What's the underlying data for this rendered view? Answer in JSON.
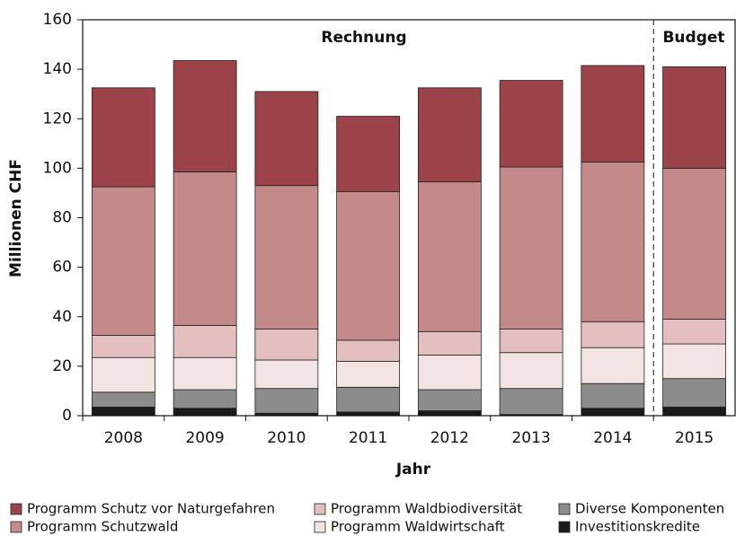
{
  "chart_data": {
    "type": "stacked_bar",
    "x_label": "Jahr",
    "y_label": "Millionen CHF",
    "annotations": [
      "Rechnung",
      "Budget"
    ],
    "categories": [
      "2008",
      "2009",
      "2010",
      "2011",
      "2012",
      "2013",
      "2014",
      "2015"
    ],
    "series": [
      {
        "name": "Investitionskredite",
        "color": "#1a1a1a",
        "values": [
          3.5,
          3,
          1,
          1.5,
          2,
          0.5,
          3,
          3.5
        ]
      },
      {
        "name": "Diverse Komponenten",
        "color": "#8c8c8c",
        "values": [
          6,
          7.5,
          10,
          10,
          8.5,
          10.5,
          10,
          11.5
        ]
      },
      {
        "name": "Programm Waldwirtschaft",
        "color": "#f4e3e3",
        "values": [
          14,
          13,
          11.5,
          10.5,
          14,
          14.5,
          14.5,
          14
        ]
      },
      {
        "name": "Programm Waldbiodiversität",
        "color": "#e3c0bf",
        "values": [
          9,
          13,
          12.5,
          8.5,
          9.5,
          9.5,
          10.5,
          10
        ]
      },
      {
        "name": "Programm Schutzwald",
        "color": "#c48a8a",
        "values": [
          60,
          62,
          58,
          60,
          60.5,
          65.5,
          64.5,
          61
        ]
      },
      {
        "name": "Programm Schutz vor Naturgefahren",
        "color": "#9b4349",
        "values": [
          40,
          45,
          38,
          30.5,
          38,
          35,
          39,
          41
        ]
      }
    ],
    "ylim": [
      0,
      160
    ],
    "yticks": [
      0,
      20,
      40,
      60,
      80,
      100,
      120,
      140,
      160
    ]
  }
}
